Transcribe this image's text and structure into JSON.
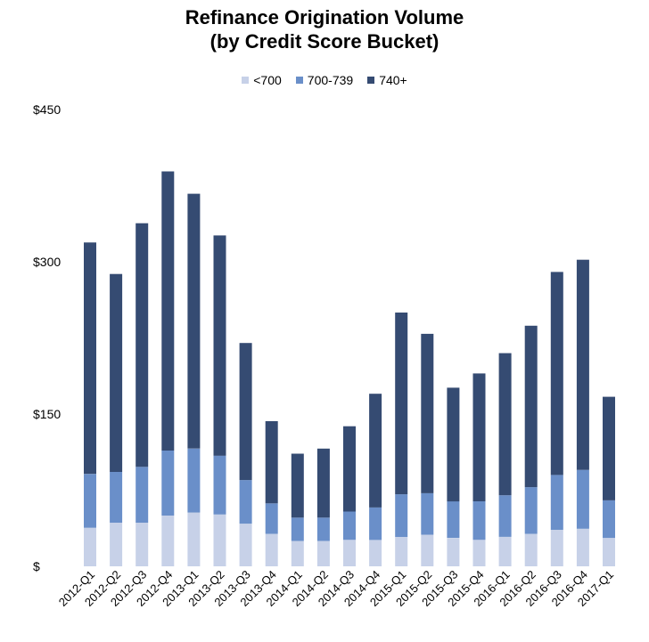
{
  "chart_data": {
    "type": "bar",
    "stacked": true,
    "title": [
      "Refinance Origination Volume",
      "(by Credit Score Bucket)"
    ],
    "xlabel": "",
    "ylabel": "",
    "ylim": [
      0,
      450
    ],
    "yticks": [
      0,
      150,
      300,
      450
    ],
    "ytick_labels": [
      "$",
      "$150",
      "$300",
      "$450"
    ],
    "grid": false,
    "legend_position": "top-center",
    "categories": [
      "2012-Q1",
      "2012-Q2",
      "2012-Q3",
      "2012-Q4",
      "2013-Q1",
      "2013-Q2",
      "2013-Q3",
      "2013-Q4",
      "2014-Q1",
      "2014-Q2",
      "2014-Q3",
      "2014-Q4",
      "2015-Q1",
      "2015-Q2",
      "2015-Q3",
      "2015-Q4",
      "2016-Q1",
      "2016-Q2",
      "2016-Q3",
      "2016-Q4",
      "2017-Q1"
    ],
    "series": [
      {
        "name": "<700",
        "color": "#c7d1e8",
        "values": [
          38,
          43,
          43,
          50,
          53,
          51,
          42,
          32,
          25,
          25,
          26,
          26,
          29,
          31,
          28,
          26,
          29,
          32,
          36,
          37,
          28
        ]
      },
      {
        "name": "700-739",
        "color": "#6a8fc9",
        "values": [
          53,
          50,
          55,
          64,
          63,
          58,
          43,
          30,
          23,
          23,
          28,
          32,
          42,
          41,
          36,
          38,
          41,
          46,
          54,
          58,
          37
        ]
      },
      {
        "name": "740+",
        "color": "#354b72",
        "values": [
          228,
          195,
          240,
          275,
          251,
          217,
          135,
          81,
          63,
          68,
          84,
          112,
          179,
          157,
          112,
          126,
          140,
          159,
          200,
          207,
          102
        ]
      }
    ]
  }
}
